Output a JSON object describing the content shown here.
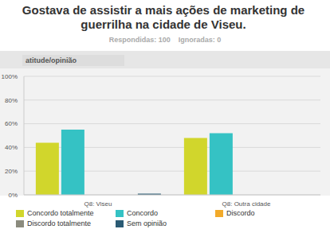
{
  "chart_data": {
    "type": "bar",
    "title": "Gostava de assistir a mais ações de marketing de guerrilha na cidade de Viseu.",
    "subtitle": "Respondidas: 100    Ignoradas: 0",
    "annotations": [
      "atitude/opinião"
    ],
    "categories": [
      "Q8: Viseu",
      "Q8: Outra cidade"
    ],
    "series": [
      {
        "name": "Concordo totalmente",
        "color": "#d1d62c",
        "values": [
          44,
          48
        ]
      },
      {
        "name": "Concordo",
        "color": "#35c2c4",
        "values": [
          55,
          52
        ]
      },
      {
        "name": "Discordo",
        "color": "#f2aa2a",
        "values": [
          0,
          0
        ]
      },
      {
        "name": "Discordo totalmente",
        "color": "#8b8b7e",
        "values": [
          0,
          0
        ]
      },
      {
        "name": "Sem opinião",
        "color": "#2b5b74",
        "values": [
          1,
          0
        ]
      }
    ],
    "ylim": [
      0,
      100
    ],
    "yticks": [
      {
        "value": 0,
        "label": "0%"
      },
      {
        "value": 20,
        "label": "20%"
      },
      {
        "value": 40,
        "label": "40%"
      },
      {
        "value": 60,
        "label": "60%"
      },
      {
        "value": 80,
        "label": "80%"
      },
      {
        "value": 100,
        "label": "100%"
      }
    ],
    "grid": true,
    "legend": "bottom"
  }
}
